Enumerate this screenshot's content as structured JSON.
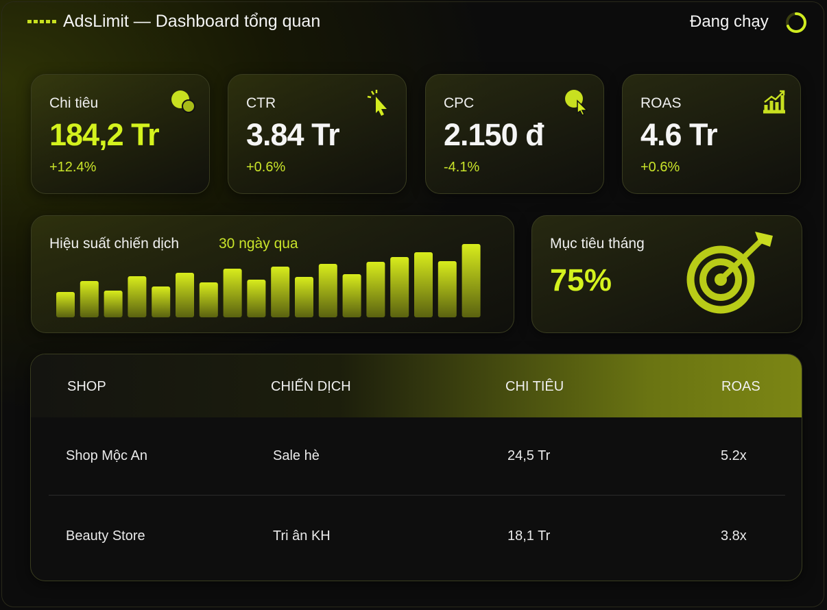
{
  "header": {
    "title": "AdsLimit — Dashboard tổng quan",
    "status": "Đang chạy"
  },
  "kpis": [
    {
      "label": "Chi tiêu",
      "value": "184,2 Tr",
      "change": "+12.4%"
    },
    {
      "label": "CTR",
      "value": "3.84 Tr",
      "change": "+0.6%"
    },
    {
      "label": "CPC",
      "value": "2.150 đ",
      "change": "-4.1%"
    },
    {
      "label": "ROAS",
      "value": "4.6 Tr",
      "change": "+0.6%"
    }
  ],
  "performance": {
    "title": "Hiệu suất chiến dịch",
    "period": "30 ngày qua",
    "values": [
      37,
      53,
      39,
      60,
      45,
      65,
      51,
      71,
      55,
      74,
      59,
      78,
      63,
      81,
      88,
      95,
      82,
      107
    ]
  },
  "goal": {
    "label": "Mục tiêu tháng",
    "value": "75%"
  },
  "table": {
    "header": [
      "SHOP",
      "CHIẾN DỊCH",
      "CHI TIÊU",
      "ROAS"
    ],
    "rows": [
      [
        "Shop Mộc An",
        "Sale hè",
        "24,5 Tr",
        "5.2x"
      ],
      [
        "Beauty Store",
        "Tri ân KH",
        "18,1 Tr",
        "3.8x"
      ]
    ]
  }
}
